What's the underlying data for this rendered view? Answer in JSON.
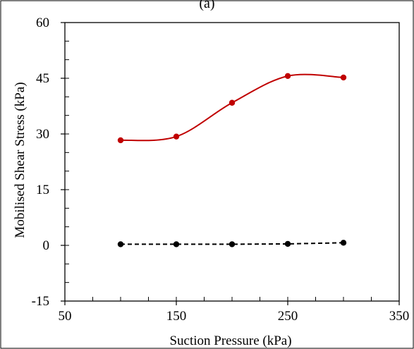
{
  "panel_label": "(a)",
  "chart_data": {
    "type": "line",
    "title": "",
    "xlabel": "Suction Pressure (kPa)",
    "ylabel": "Mobilised Shear Stress (kPa)",
    "xlim": [
      50,
      350
    ],
    "ylim": [
      -15,
      60
    ],
    "xticks": [
      50,
      150,
      250,
      350
    ],
    "yticks": [
      -15,
      0,
      15,
      30,
      45,
      60
    ],
    "x_minor_step": 25,
    "y_minor_step": 5,
    "grid": false,
    "legend": "none",
    "series": [
      {
        "color": "#c00000",
        "line_style": "solid",
        "smooth": true,
        "marker": "circle",
        "x": [
          100,
          150,
          200,
          250,
          300
        ],
        "y": [
          28.3,
          29.3,
          38.4,
          45.6,
          45.2
        ]
      },
      {
        "color": "#000000",
        "line_style": "dashed",
        "smooth": false,
        "marker": "circle",
        "x": [
          100,
          150,
          200,
          250,
          300
        ],
        "y": [
          0.3,
          0.3,
          0.3,
          0.4,
          0.7
        ]
      }
    ]
  }
}
